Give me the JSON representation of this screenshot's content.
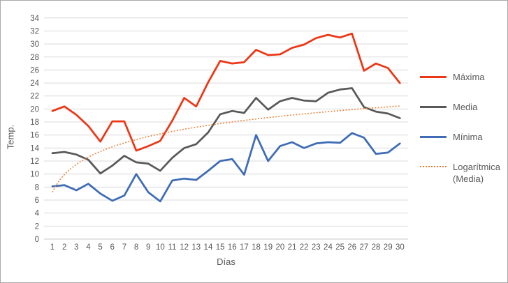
{
  "chart_data": {
    "type": "line",
    "title": "",
    "xlabel": "Días",
    "ylabel": "Temp.",
    "grid": true,
    "legend_position": "right",
    "ylim": [
      0,
      34
    ],
    "y_ticks": [
      0,
      2,
      4,
      6,
      8,
      10,
      12,
      14,
      16,
      18,
      20,
      22,
      24,
      26,
      28,
      30,
      32,
      34
    ],
    "x": [
      1,
      2,
      3,
      4,
      5,
      6,
      7,
      8,
      9,
      10,
      11,
      12,
      13,
      14,
      15,
      16,
      17,
      18,
      19,
      20,
      21,
      22,
      23,
      24,
      25,
      26,
      27,
      28,
      29,
      30
    ],
    "series": [
      {
        "name": "Máxima",
        "color": "#ec3717",
        "style": "solid",
        "values": [
          19.7,
          20.4,
          19.1,
          17.4,
          15.0,
          18.1,
          18.1,
          13.6,
          14.3,
          15.1,
          18.2,
          21.7,
          20.4,
          24.1,
          27.4,
          27.0,
          27.2,
          29.1,
          28.3,
          28.4,
          29.4,
          29.9,
          30.9,
          31.4,
          31.0,
          31.6,
          25.9,
          27.0,
          26.3,
          24.0
        ]
      },
      {
        "name": "Media",
        "color": "#595959",
        "style": "solid",
        "values": [
          13.2,
          13.4,
          13.0,
          12.2,
          10.1,
          11.3,
          12.8,
          11.8,
          11.6,
          10.5,
          12.5,
          14.0,
          14.6,
          16.4,
          19.2,
          19.7,
          19.4,
          21.7,
          19.9,
          21.2,
          21.7,
          21.3,
          21.2,
          22.5,
          23.0,
          23.2,
          20.3,
          19.6,
          19.3,
          18.6
        ]
      },
      {
        "name": "Mínima",
        "color": "#3e6cb5",
        "style": "solid",
        "values": [
          8.1,
          8.3,
          7.5,
          8.5,
          7.0,
          5.9,
          6.7,
          10.0,
          7.2,
          5.8,
          9.0,
          9.3,
          9.1,
          10.5,
          12.0,
          12.3,
          9.9,
          16.0,
          12.0,
          14.3,
          14.9,
          14.0,
          14.7,
          14.9,
          14.8,
          16.3,
          15.6,
          13.1,
          13.3,
          14.7
        ]
      }
    ],
    "trendline": {
      "name": "Logarítmica (Media)",
      "based_on": "Media",
      "type": "logarithmic",
      "color": "#ed7d31",
      "style": "dotted",
      "equation": {
        "a": 7.2,
        "b": 3.9
      }
    },
    "colors": {
      "grid": "#d9d9d9",
      "axis_line": "#c9c9c9",
      "text": "#595959"
    }
  },
  "legend": {
    "items": [
      {
        "label": "Máxima"
      },
      {
        "label": "Media"
      },
      {
        "label": "Mínima"
      },
      {
        "label": "Logarítmica (Media)"
      }
    ]
  }
}
